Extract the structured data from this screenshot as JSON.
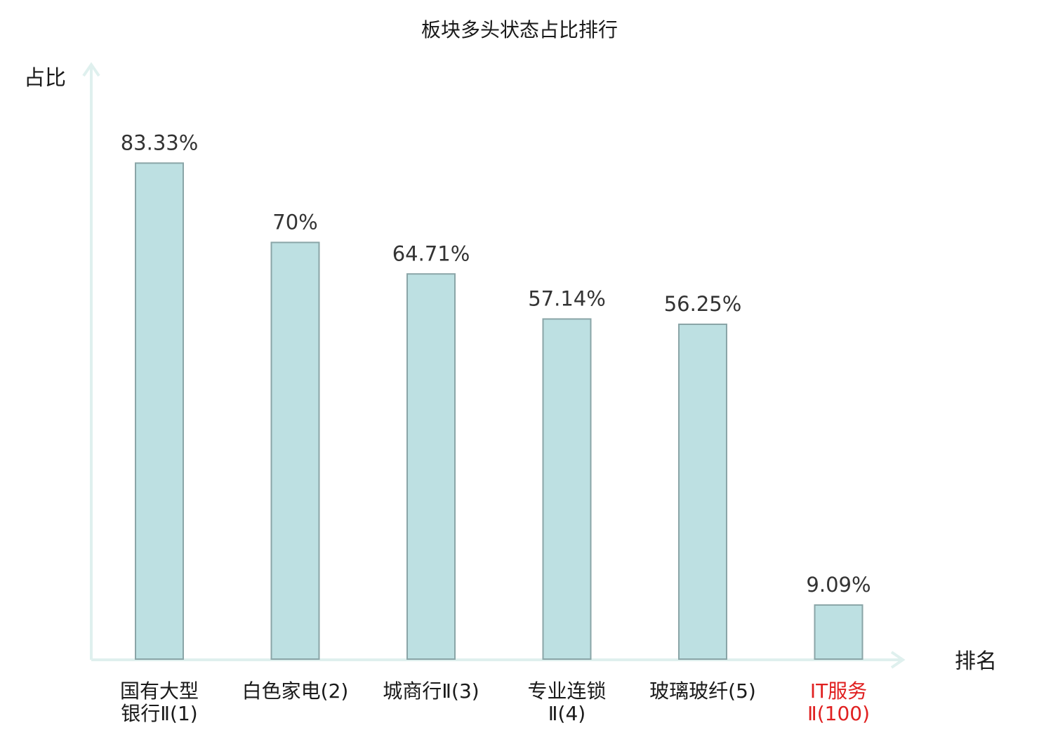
{
  "chart_data": {
    "type": "bar",
    "title": "板块多头状态占比排行",
    "ylabel": "占比",
    "xlabel": "排名",
    "ylim": [
      0,
      100
    ],
    "grid": false,
    "categories": [
      [
        "国有大型",
        "银行Ⅱ(1)"
      ],
      [
        "白色家电(2)"
      ],
      [
        "城商行Ⅱ(3)"
      ],
      [
        "专业连锁",
        "Ⅱ(4)"
      ],
      [
        "玻璃玻纤(5)"
      ],
      [
        "IT服务",
        "Ⅱ(100)"
      ]
    ],
    "values": [
      83.33,
      70,
      64.71,
      57.14,
      56.25,
      9.09
    ],
    "value_labels": [
      "83.33%",
      "70%",
      "64.71%",
      "57.14%",
      "56.25%",
      "9.09%"
    ],
    "highlight_index": 5,
    "colors": {
      "bar_fill": "#bde0e2",
      "bar_stroke": "#8aa5a7",
      "axis": "#dff0ee",
      "label_default": "#1a1a1a",
      "label_highlight": "#e02020"
    }
  }
}
